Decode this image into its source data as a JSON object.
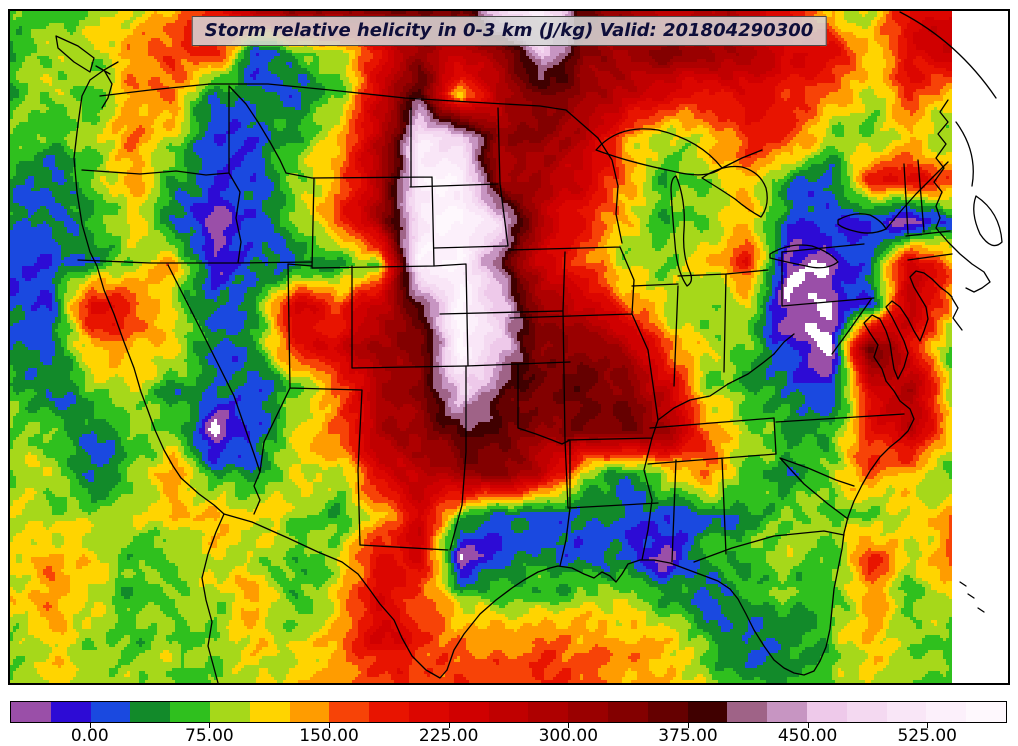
{
  "title_box": {
    "text": "Storm relative helicity in 0-3 km (J/kg) Valid: 201804290300"
  },
  "chart_data": {
    "type": "heatmap",
    "subtype": "filled-contour-weather-map",
    "title": "Storm relative helicity in 0-3 km (J/kg)",
    "valid_timestamp": "201804290300",
    "units": "J/kg",
    "region": "Continental United States with state and coastal borders (Lambert-conformal model domain; field ends in a straight vertical edge near the right side, white beyond)",
    "grid_on": false,
    "legend_position": "bottom-horizontal-colorbar",
    "colorbar": {
      "tick_labels": [
        "0.00",
        "75.00",
        "150.00",
        "225.00",
        "300.00",
        "375.00",
        "450.00",
        "525.00"
      ],
      "tick_values": [
        0,
        75,
        150,
        225,
        300,
        375,
        450,
        525
      ],
      "vmin": -50,
      "vmax": 575,
      "step": 25,
      "colors": [
        "#9a4fa8",
        "#2d0bd5",
        "#1a49e0",
        "#128a2a",
        "#2fc01e",
        "#a6d81a",
        "#ffd400",
        "#ff9c00",
        "#f74307",
        "#e81400",
        "#dc0600",
        "#d00000",
        "#c00000",
        "#ae0000",
        "#9a0000",
        "#830000",
        "#650000",
        "#400000",
        "#9f6387",
        "#c795c2",
        "#eec9ea",
        "#f4d9f1",
        "#f9e6f7",
        "#fcf0fb",
        "#fef8fd"
      ],
      "below_scale_color": "#ffffff"
    },
    "grid": {
      "description": "Approximate storm-relative helicity (J/kg) sampled on a 24x17 grid across the map, row-major from the northwest corner; values below -50 render white (off scale), values above 450 render pale pink/white maxima",
      "ncols": 24,
      "nrows": 17,
      "values": [
        [
          62,
          62,
          88,
          88,
          138,
          185,
          285,
          310,
          335,
          335,
          360,
          335,
          510,
          535,
          360,
          310,
          260,
          285,
          260,
          210,
          112,
          88,
          210,
          235
        ],
        [
          62,
          88,
          88,
          138,
          185,
          185,
          -12,
          62,
          88,
          185,
          310,
          260,
          310,
          475,
          335,
          310,
          335,
          310,
          285,
          235,
          210,
          112,
          210,
          260
        ],
        [
          62,
          88,
          62,
          138,
          162,
          12,
          38,
          12,
          62,
          235,
          390,
          112,
          285,
          360,
          310,
          285,
          210,
          185,
          210,
          185,
          138,
          88,
          185,
          112
        ],
        [
          62,
          62,
          88,
          162,
          88,
          12,
          12,
          62,
          112,
          260,
          510,
          475,
          310,
          335,
          285,
          138,
          88,
          112,
          185,
          162,
          88,
          62,
          112,
          62
        ],
        [
          38,
          12,
          62,
          138,
          38,
          12,
          12,
          88,
          138,
          285,
          540,
          540,
          285,
          285,
          235,
          138,
          62,
          88,
          138,
          38,
          12,
          185,
          210,
          162
        ],
        [
          38,
          12,
          38,
          112,
          12,
          -38,
          12,
          88,
          162,
          310,
          520,
          560,
          475,
          260,
          185,
          112,
          62,
          88,
          138,
          12,
          12,
          -12,
          -60,
          12
        ],
        [
          12,
          12,
          38,
          88,
          138,
          -38,
          12,
          12,
          38,
          88,
          560,
          560,
          390,
          235,
          162,
          88,
          62,
          112,
          185,
          -38,
          -38,
          38,
          260,
          138
        ],
        [
          12,
          12,
          235,
          185,
          88,
          12,
          38,
          235,
          162,
          260,
          390,
          560,
          475,
          310,
          260,
          162,
          88,
          62,
          88,
          -60,
          -38,
          12,
          285,
          138
        ],
        [
          12,
          38,
          138,
          138,
          112,
          12,
          38,
          185,
          235,
          310,
          335,
          560,
          475,
          335,
          335,
          285,
          162,
          88,
          62,
          -12,
          -60,
          390,
          210,
          62
        ],
        [
          62,
          12,
          62,
          88,
          38,
          38,
          12,
          62,
          162,
          285,
          335,
          475,
          390,
          335,
          360,
          335,
          260,
          88,
          62,
          38,
          -12,
          210,
          285,
          88
        ],
        [
          88,
          62,
          12,
          62,
          88,
          -60,
          12,
          112,
          162,
          285,
          310,
          390,
          360,
          310,
          335,
          360,
          310,
          162,
          88,
          62,
          38,
          185,
          260,
          112
        ],
        [
          88,
          88,
          12,
          62,
          162,
          38,
          38,
          112,
          88,
          210,
          260,
          310,
          335,
          260,
          88,
          38,
          88,
          162,
          62,
          38,
          62,
          162,
          112,
          62
        ],
        [
          88,
          88,
          88,
          112,
          112,
          138,
          112,
          88,
          38,
          112,
          235,
          62,
          12,
          12,
          38,
          12,
          12,
          12,
          38,
          62,
          88,
          62,
          112,
          138
        ],
        [
          88,
          138,
          112,
          62,
          62,
          112,
          88,
          62,
          88,
          210,
          235,
          -60,
          12,
          38,
          12,
          12,
          -38,
          62,
          62,
          88,
          62,
          185,
          88,
          162
        ],
        [
          112,
          138,
          88,
          62,
          62,
          88,
          138,
          62,
          112,
          235,
          162,
          88,
          62,
          62,
          88,
          88,
          62,
          12,
          62,
          62,
          62,
          138,
          62,
          88
        ],
        [
          88,
          112,
          88,
          62,
          88,
          62,
          112,
          88,
          138,
          235,
          185,
          162,
          138,
          162,
          138,
          138,
          112,
          62,
          12,
          38,
          62,
          138,
          88,
          62
        ],
        [
          88,
          112,
          88,
          88,
          88,
          62,
          88,
          112,
          138,
          162,
          162,
          185,
          162,
          185,
          162,
          138,
          112,
          88,
          38,
          62,
          62,
          112,
          88,
          62
        ]
      ]
    },
    "notable_features": [
      "North-south pale pink/white maximum (>450 J/kg) from western North Dakota through western South Dakota, the Nebraska panhandle and northeastern Colorado",
      "Second pale maximum (>450 J/kg) over Manitoba at the top center of the map",
      "Broad dark-red swath (250-400 J/kg) from Montana and the Dakotas south through Kansas, Oklahoma and north Texas, extending southeast through Missouri into Arkansas",
      "Dark-red maxima along the Virginia/North Carolina coastal band with small pale-pink core",
      "White and purple negative-helicity pockets over Pennsylvania, West Virginia, the Lake Erie region, central Texas and southern Nevada",
      "Orange band along the western Gulf coast and deep south Texas near the bottom edge",
      "Blue band (near 0-25 J/kg) across Louisiana, Mississippi, Alabama and Georgia; mottled green over the Gulf of Mexico and Florida with a red cell over central Florida"
    ]
  }
}
